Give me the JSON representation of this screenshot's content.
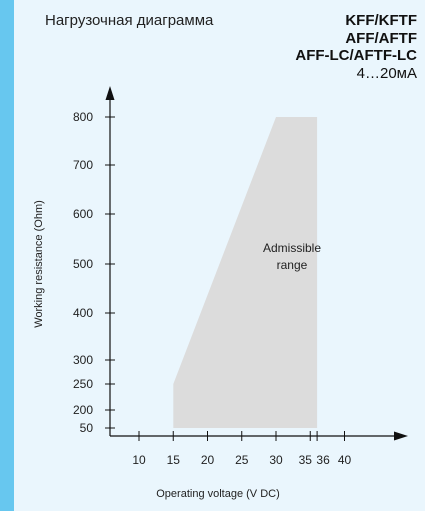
{
  "header": {
    "title": "Нагрузочная диаграмма",
    "models": [
      "KFF/KFTF",
      "AFF/AFTF",
      "AFF-LC/AFTF-LC"
    ],
    "signal": "4…20мА"
  },
  "chart_data": {
    "type": "area",
    "title": "Нагрузочная диаграмма",
    "xlabel": "Operating voltage  (V DC)",
    "ylabel": "Working resistance  (Ohm)",
    "x_ticks": [
      10,
      15,
      20,
      25,
      30,
      35,
      36,
      40
    ],
    "y_ticks": [
      50,
      200,
      250,
      300,
      400,
      500,
      600,
      700,
      800
    ],
    "xlim": [
      5,
      43
    ],
    "ylim": [
      50,
      800
    ],
    "region": {
      "label": "Admissible range",
      "points": [
        [
          15,
          50
        ],
        [
          15,
          250
        ],
        [
          30,
          800
        ],
        [
          36,
          800
        ],
        [
          36,
          50
        ]
      ]
    },
    "annotation_lines": [
      "Admissible",
      "range"
    ],
    "colors": {
      "region": "#dcdcdc",
      "axis": "#111111",
      "background": "#eaf6fd",
      "border": "#67c7ef"
    },
    "grid": false
  }
}
